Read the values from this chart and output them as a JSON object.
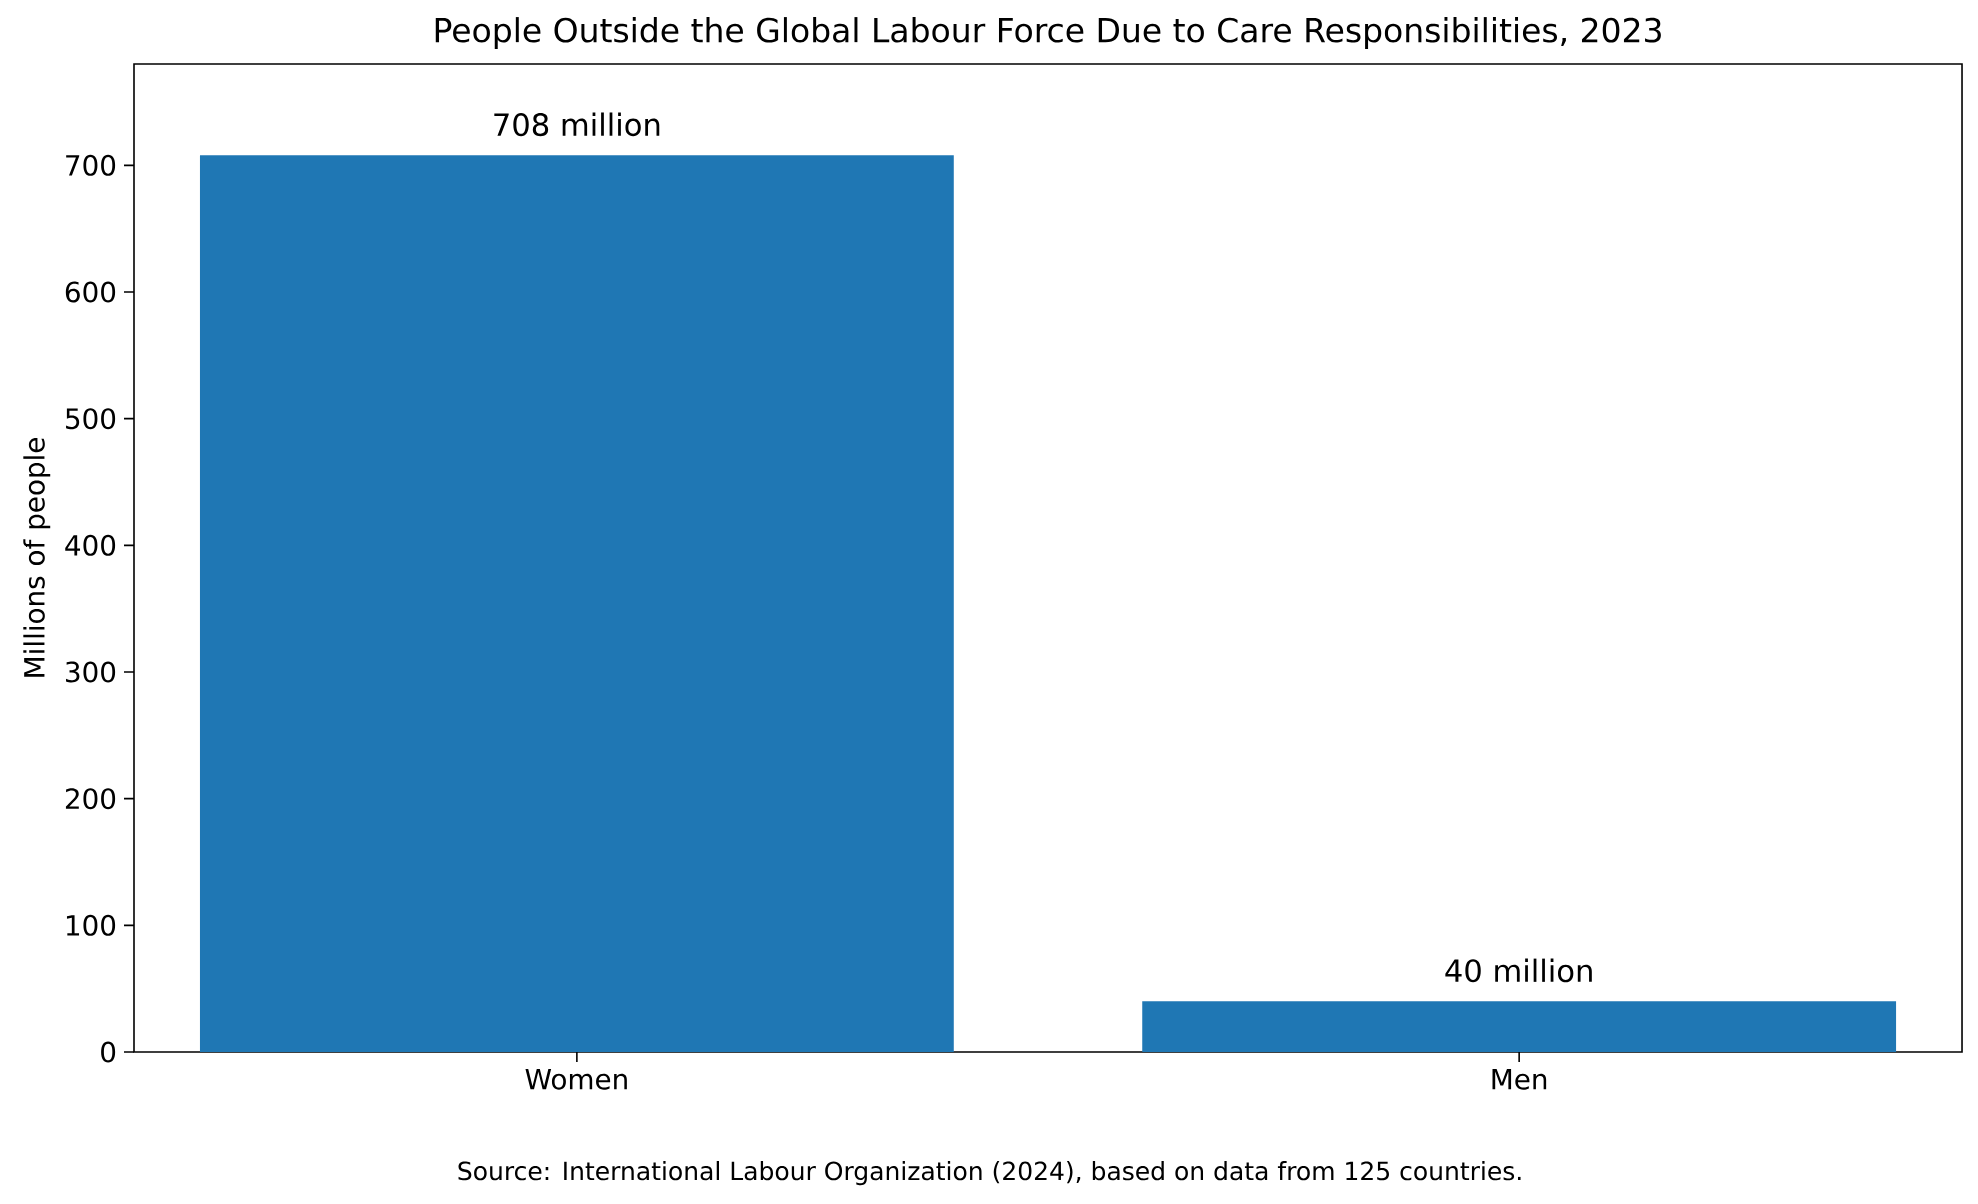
{
  "chart_data": {
    "type": "bar",
    "title": "People Outside the Global Labour Force Due to Care Responsibilities, 2023",
    "ylabel": "Millions of people",
    "categories": [
      "Women",
      "Men"
    ],
    "values": [
      708,
      40
    ],
    "value_labels": [
      "708 million",
      "40 million"
    ],
    "color": "#1f77b4",
    "ylim": [
      0,
      780
    ],
    "yticks": [
      0,
      100,
      200,
      300,
      400,
      500,
      600,
      700
    ],
    "annotations": [
      "Source: International Labour Organization (2024), based on data from 125 countries."
    ]
  }
}
